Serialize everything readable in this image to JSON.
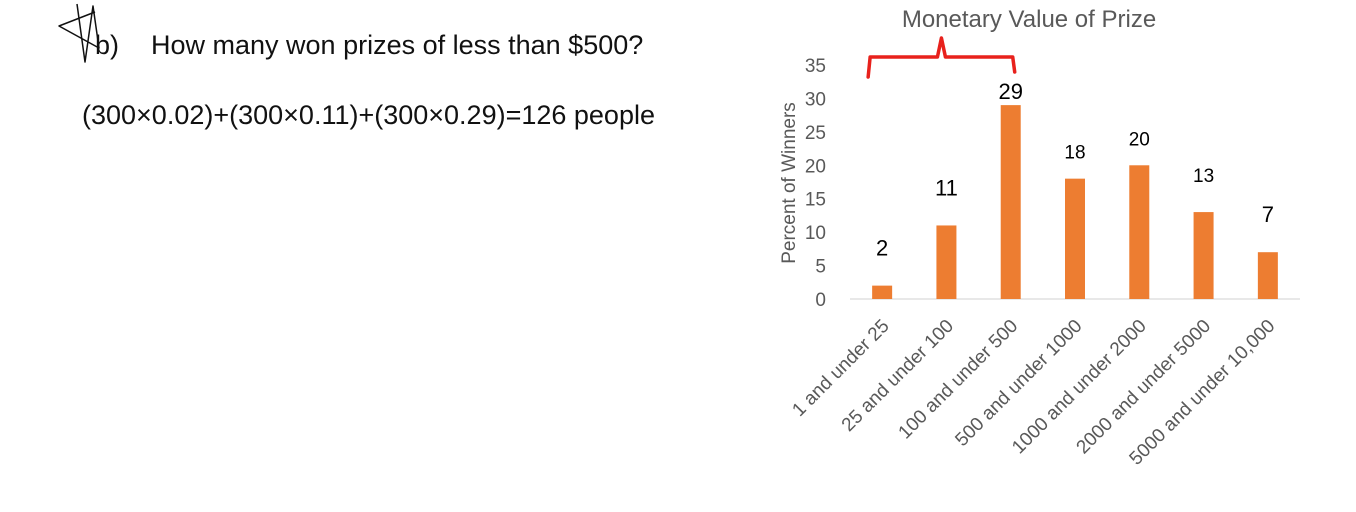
{
  "question": {
    "letter": "b)",
    "text": "How many won prizes of less than $500?"
  },
  "answer": {
    "text": "(300×0.02)+(300×0.11)+(300×0.29)=126 people"
  },
  "colors": {
    "bar": "#ed7d31",
    "bracket": "#e8211c",
    "axis_text": "#595959",
    "label_text": "#000000",
    "baseline": "#d9d9d9"
  },
  "chart_data": {
    "type": "bar",
    "title": "Monetary Value of Prize",
    "xlabel": "",
    "ylabel": "Percent of Winners",
    "ylim": [
      0,
      35
    ],
    "yticks": [
      0,
      5,
      10,
      15,
      20,
      25,
      30,
      35
    ],
    "grid": false,
    "legend": "none",
    "categories": [
      "1 and under 25",
      "25 and under 100",
      "100 and under 500",
      "500 and under 1000",
      "1000 and under 2000",
      "2000 and under 5000",
      "5000 and under 10,000"
    ],
    "values": [
      2,
      11,
      29,
      18,
      20,
      13,
      7
    ],
    "data_labels": [
      "2",
      "11",
      "29",
      "18",
      "20",
      "13",
      "7"
    ],
    "annotation": {
      "type": "brace",
      "spans_categories": [
        0,
        2
      ]
    }
  }
}
